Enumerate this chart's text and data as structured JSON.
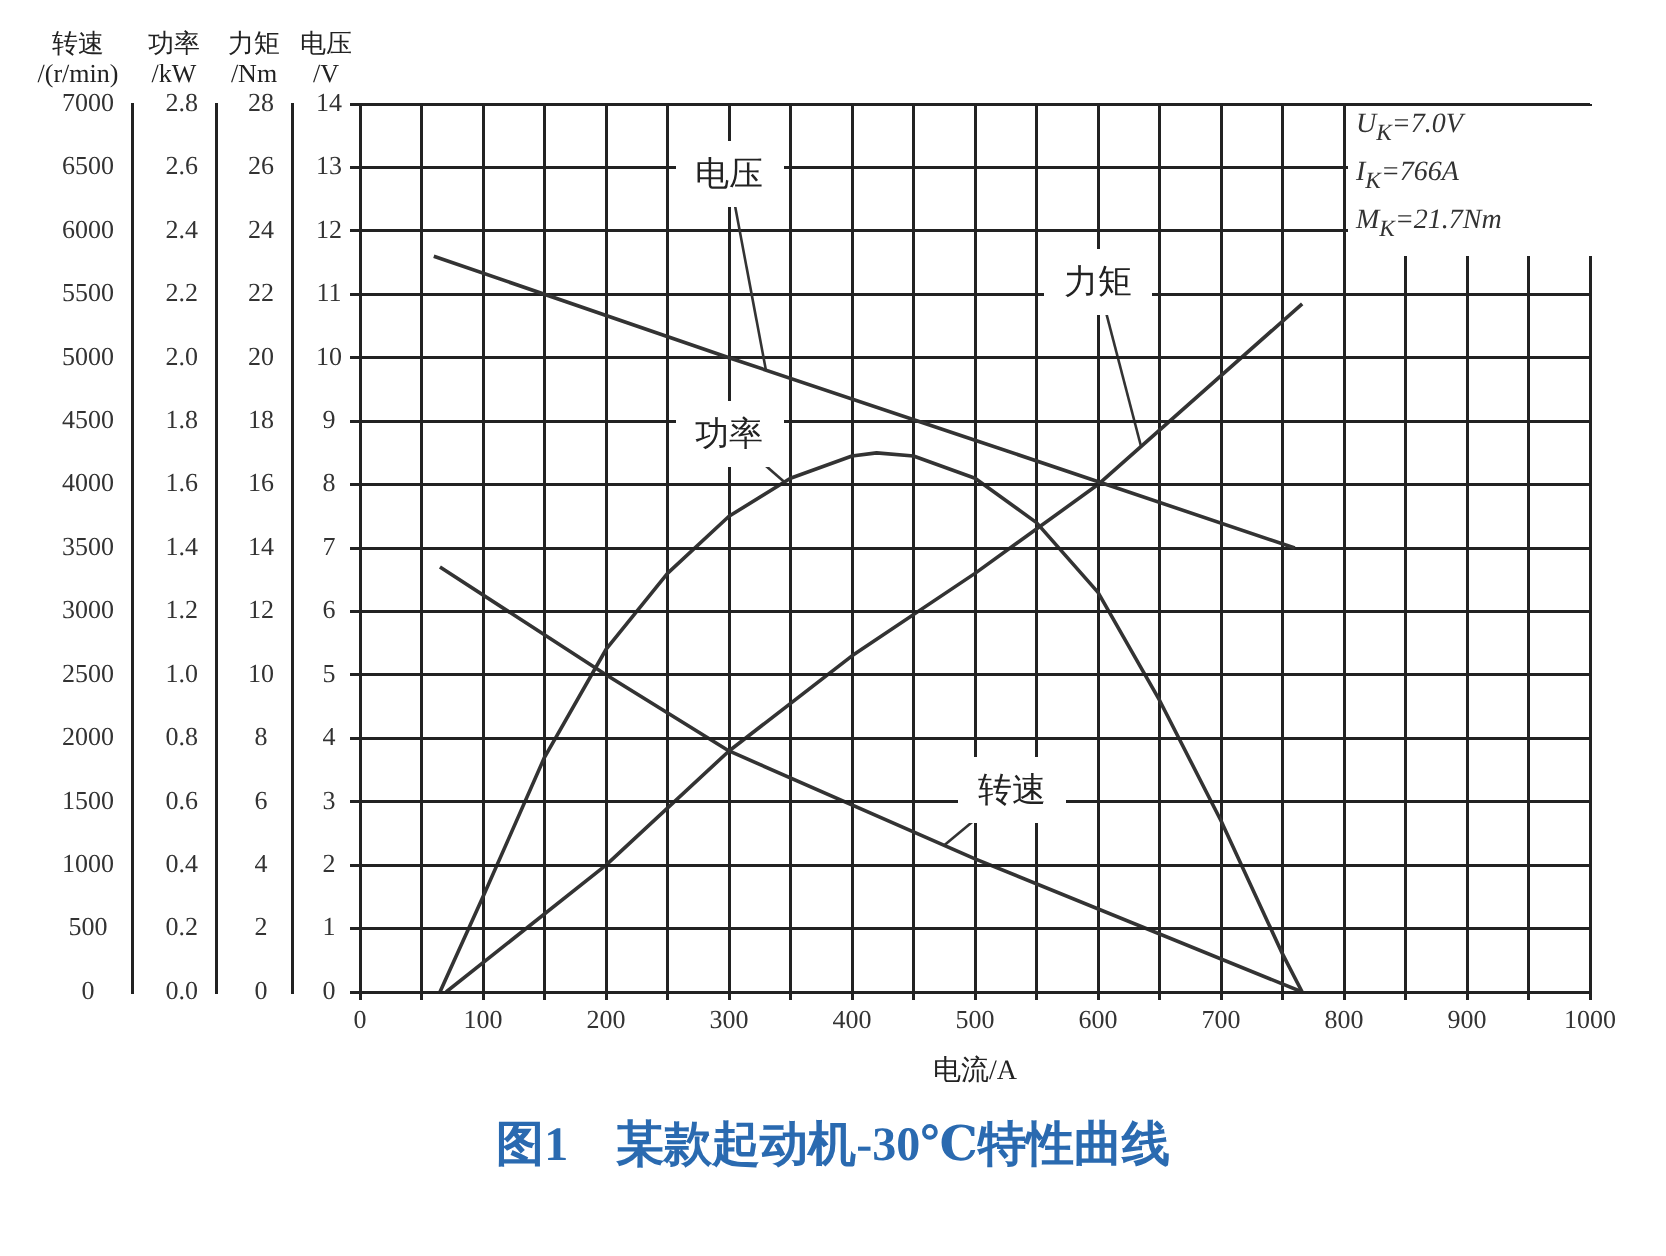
{
  "chart_data": [
    {
      "type": "line",
      "title": "图1　某款起动机-30℃特性曲线",
      "xlabel": "电流/A",
      "ylabel": "转速/(r/min)",
      "y2label": "功率/kW",
      "y3label": "力矩/Nm",
      "annotations": [
        "U$_{K}$=7.0V",
        "I$_{K}$=766A",
        "M$_{K}$=21.7Nm"
      ],
      "xlim": [
        0,
        1000
      ],
      "xticks": [
        0,
        {
          "value": 50,
          "label": null
        },
        100,
        {
          "value": 150,
          "label": null
        },
        200,
        {
          "value": 250,
          "label": null
        },
        300,
        {
          "value": 350,
          "label": null
        },
        400,
        {
          "value": 450,
          "label": null
        },
        500,
        {
          "value": 550,
          "label": null
        },
        600,
        {
          "value": 650,
          "label": null
        },
        700,
        {
          "value": 750,
          "label": null
        },
        800,
        {
          "value": 850,
          "label": null
        },
        900,
        {
          "value": 950,
          "label": null
        },
        1000
      ],
      "ylim": [
        0,
        7000
      ],
      "yticks": [
        0,
        500,
        1000,
        1500,
        2000,
        2500,
        3000,
        3500,
        4000,
        4500,
        5000,
        5500,
        6000,
        6500,
        7000
      ],
      "y2lim": [
        0,
        2.8
      ],
      "y2ticks": [
        {
          "value": 0,
          "label": "0.0"
        },
        0.2,
        0.4,
        0.6,
        0.8,
        {
          "value": 1,
          "label": "1.0"
        },
        1.2,
        1.4,
        1.6,
        1.8,
        {
          "value": 2,
          "label": "2.0"
        },
        2.2,
        2.4,
        2.6,
        2.8
      ],
      "y3lim": [
        0,
        28
      ],
      "y3ticks": [
        0,
        2,
        4,
        6,
        8,
        10,
        12,
        14,
        16,
        18,
        20,
        22,
        24,
        26,
        28
      ],
      "grid": "x",
      "legend": false,
      "marker": "none",
      "line_style": "solid",
      "series": [
        {
          "name": "力矩",
          "color": "#333333",
          "axis": "y3",
          "x": [
            70,
            200,
            300,
            400,
            500,
            600,
            766
          ],
          "values": [
            0,
            4.0,
            7.6,
            10.6,
            13.2,
            16.0,
            21.7
          ]
        },
        {
          "name": "功率",
          "color": "#333333",
          "axis": "y2",
          "x": [
            65,
            100,
            150,
            200,
            250,
            300,
            350,
            400,
            420,
            450,
            500,
            550,
            600,
            650,
            700,
            750,
            766
          ],
          "values": [
            0,
            0.3,
            0.74,
            1.08,
            1.32,
            1.5,
            1.62,
            1.69,
            1.7,
            1.69,
            1.62,
            1.48,
            1.26,
            0.92,
            0.54,
            0.12,
            0
          ]
        },
        {
          "name": "转速",
          "color": "#333333",
          "x": [
            65,
            200,
            300,
            500,
            766
          ],
          "values": [
            3350,
            2500,
            1900,
            1050,
            0
          ]
        }
      ]
    },
    {
      "type": "line",
      "ylabel": "电压/V",
      "xlim": [
        0,
        1000
      ],
      "ylim": [
        0,
        14
      ],
      "yticks": [
        0,
        1,
        2,
        3,
        4,
        5,
        6,
        7,
        8,
        9,
        10,
        11,
        12,
        13,
        14
      ],
      "tick_labels": "y",
      "grid": "y",
      "legend": false,
      "marker": "none",
      "line_style": "solid",
      "series": [
        {
          "name": "电压",
          "color": "#333333",
          "x": [
            60,
            300,
            500,
            760
          ],
          "values": [
            11.6,
            10.0,
            8.7,
            7.0
          ]
        }
      ]
    }
  ]
}
